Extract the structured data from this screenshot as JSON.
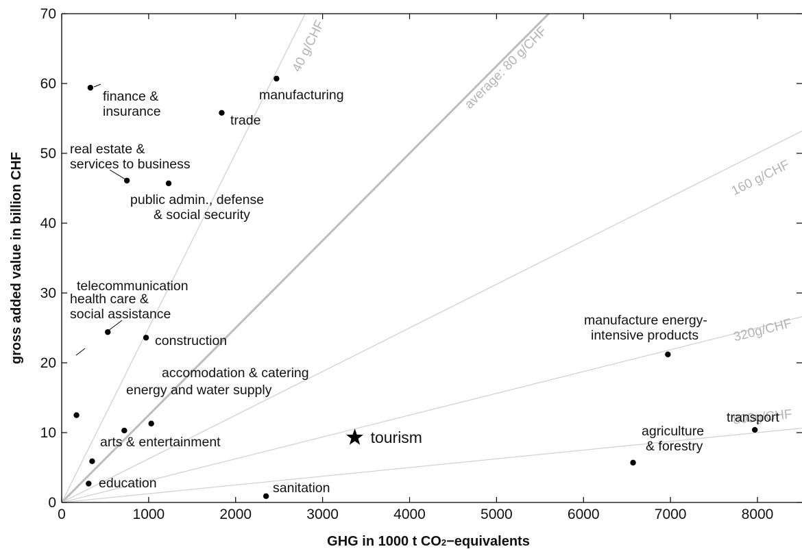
{
  "chart_data": {
    "type": "scatter",
    "xlabel_parts": [
      "GHG in 1000 t CO",
      "2",
      "−equivalents"
    ],
    "ylabel": "gross added value in billion CHF",
    "xlim": [
      0,
      8500
    ],
    "ylim": [
      0,
      70
    ],
    "xticks": [
      0,
      1000,
      2000,
      3000,
      4000,
      5000,
      6000,
      7000,
      8000
    ],
    "yticks": [
      0,
      10,
      20,
      30,
      40,
      50,
      60,
      70
    ],
    "points": [
      {
        "lines": [
          "finance &",
          "insurance"
        ],
        "x": 330,
        "y": 59.4
      },
      {
        "lines": [
          "manufacturing"
        ],
        "x": 2470,
        "y": 60.7
      },
      {
        "lines": [
          "trade"
        ],
        "x": 1840,
        "y": 55.8
      },
      {
        "lines": [
          "real estate &",
          "services to business"
        ],
        "x": 750,
        "y": 46.1
      },
      {
        "lines": [
          "public admin., defense",
          "& social security"
        ],
        "x": 1230,
        "y": 45.7
      },
      {
        "lines": [
          "health care &",
          "social assistance"
        ],
        "x": 530,
        "y": 24.4
      },
      {
        "lines": [
          "construction"
        ],
        "x": 970,
        "y": 23.6
      },
      {
        "lines": [
          "manufacture energy-",
          "intensive products"
        ],
        "x": 6970,
        "y": 21.2
      },
      {
        "lines": [
          "telecommunication"
        ],
        "x": 170,
        "y": 12.5
      },
      {
        "lines": [
          "accomodation & catering"
        ],
        "x": 1030,
        "y": 11.3
      },
      {
        "lines": [
          "energy and water supply"
        ],
        "x": 720,
        "y": 10.3
      },
      {
        "lines": [
          "transport"
        ],
        "x": 7970,
        "y": 10.4
      },
      {
        "lines": [
          "arts & entertainment"
        ],
        "x": 350,
        "y": 5.9
      },
      {
        "lines": [
          "agriculture",
          "& forestry"
        ],
        "x": 6570,
        "y": 5.7
      },
      {
        "lines": [
          "education"
        ],
        "x": 310,
        "y": 2.7
      },
      {
        "lines": [
          "sanitation"
        ],
        "x": 2350,
        "y": 0.9
      }
    ],
    "highlight": {
      "label": "tourism",
      "x": 3370,
      "y": 9.3,
      "marker": "star"
    },
    "reference_lines": [
      {
        "label": "40 g/CHF",
        "g_per_chf": 40,
        "emphasis": false
      },
      {
        "label": "average: 80 g/CHF",
        "g_per_chf": 80,
        "emphasis": true
      },
      {
        "label": "160 g/CHF",
        "g_per_chf": 160,
        "emphasis": false
      },
      {
        "label": "320g/CHF",
        "g_per_chf": 320,
        "emphasis": false
      },
      {
        "label": "800g/CHF",
        "g_per_chf": 800,
        "emphasis": false
      }
    ],
    "grid": false,
    "colors": {
      "points": "#000000",
      "reference": "#d2d2d2",
      "reference_emphasis": "#bdbdbd",
      "reference_label": "#b4b4b4"
    }
  }
}
